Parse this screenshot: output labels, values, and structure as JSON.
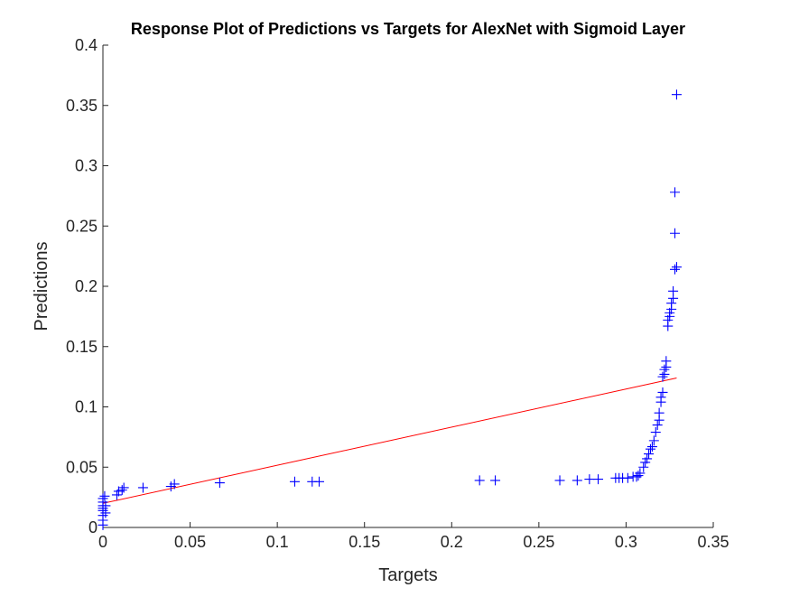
{
  "chart_data": {
    "type": "scatter",
    "title": "Response Plot of Predictions vs Targets for AlexNet with Sigmoid Layer",
    "xlabel": "Targets",
    "ylabel": "Predictions",
    "xlim": [
      0,
      0.35
    ],
    "ylim": [
      0,
      0.4
    ],
    "xticks": [
      0,
      0.05,
      0.1,
      0.15,
      0.2,
      0.25,
      0.3,
      0.35
    ],
    "xtick_labels": [
      "0",
      "0.05",
      "0.1",
      "0.15",
      "0.2",
      "0.25",
      "0.3",
      "0.35"
    ],
    "yticks": [
      0,
      0.05,
      0.1,
      0.15,
      0.2,
      0.25,
      0.3,
      0.35,
      0.4
    ],
    "ytick_labels": [
      "0",
      "0.05",
      "0.1",
      "0.15",
      "0.2",
      "0.25",
      "0.3",
      "0.35",
      "0.4"
    ],
    "grid": false,
    "marker": "+",
    "marker_color": "#0000ff",
    "fit_line_color": "#ff0000",
    "points": [
      [
        0,
        0.002
      ],
      [
        0,
        0.006
      ],
      [
        0,
        0.01
      ],
      [
        0,
        0.014
      ],
      [
        0,
        0.016
      ],
      [
        0,
        0.018
      ],
      [
        0,
        0.021
      ],
      [
        0,
        0.024
      ],
      [
        0.001,
        0.026
      ],
      [
        0.0015,
        0.012
      ],
      [
        0.0015,
        0.018
      ],
      [
        0.008,
        0.027
      ],
      [
        0.009,
        0.03
      ],
      [
        0.011,
        0.031
      ],
      [
        0.012,
        0.033
      ],
      [
        0.023,
        0.033
      ],
      [
        0.039,
        0.034
      ],
      [
        0.041,
        0.036
      ],
      [
        0.067,
        0.037
      ],
      [
        0.11,
        0.038
      ],
      [
        0.12,
        0.038
      ],
      [
        0.124,
        0.038
      ],
      [
        0.216,
        0.039
      ],
      [
        0.225,
        0.039
      ],
      [
        0.262,
        0.039
      ],
      [
        0.272,
        0.039
      ],
      [
        0.279,
        0.04
      ],
      [
        0.284,
        0.04
      ],
      [
        0.294,
        0.041
      ],
      [
        0.296,
        0.041
      ],
      [
        0.298,
        0.041
      ],
      [
        0.301,
        0.041
      ],
      [
        0.304,
        0.042
      ],
      [
        0.306,
        0.042
      ],
      [
        0.307,
        0.043
      ],
      [
        0.308,
        0.045
      ],
      [
        0.31,
        0.05
      ],
      [
        0.311,
        0.054
      ],
      [
        0.312,
        0.057
      ],
      [
        0.313,
        0.061
      ],
      [
        0.314,
        0.065
      ],
      [
        0.315,
        0.067
      ],
      [
        0.316,
        0.072
      ],
      [
        0.317,
        0.079
      ],
      [
        0.318,
        0.085
      ],
      [
        0.319,
        0.089
      ],
      [
        0.319,
        0.095
      ],
      [
        0.32,
        0.104
      ],
      [
        0.32,
        0.108
      ],
      [
        0.321,
        0.112
      ],
      [
        0.321,
        0.125
      ],
      [
        0.322,
        0.127
      ],
      [
        0.322,
        0.131
      ],
      [
        0.323,
        0.133
      ],
      [
        0.323,
        0.138
      ],
      [
        0.324,
        0.167
      ],
      [
        0.324,
        0.172
      ],
      [
        0.325,
        0.175
      ],
      [
        0.325,
        0.178
      ],
      [
        0.326,
        0.181
      ],
      [
        0.326,
        0.186
      ],
      [
        0.327,
        0.19
      ],
      [
        0.327,
        0.196
      ],
      [
        0.328,
        0.214
      ],
      [
        0.329,
        0.216
      ],
      [
        0.328,
        0.244
      ],
      [
        0.328,
        0.278
      ],
      [
        0.329,
        0.359
      ]
    ],
    "fit_line": {
      "x": [
        0,
        0.329
      ],
      "y": [
        0.02,
        0.124
      ]
    }
  }
}
